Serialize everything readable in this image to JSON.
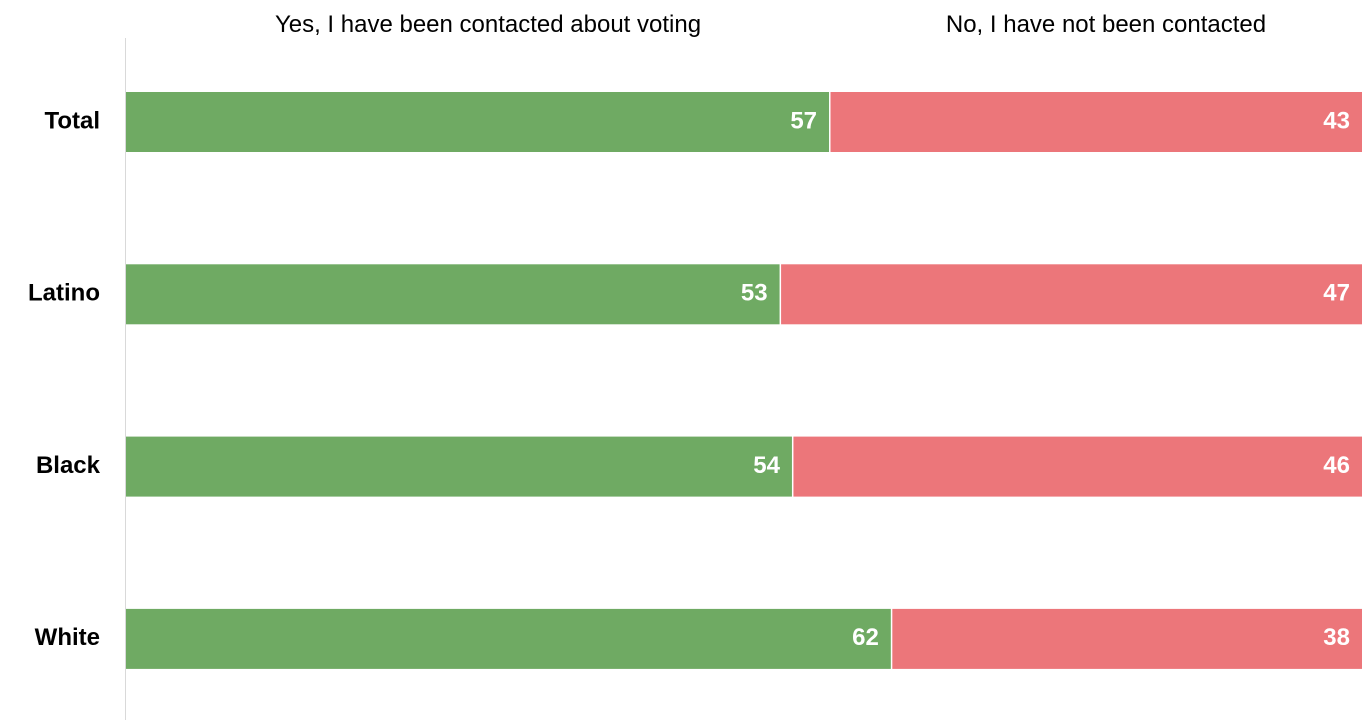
{
  "chart_data": {
    "type": "bar",
    "orientation": "horizontal",
    "stacked": true,
    "categories": [
      "Total",
      "Latino",
      "Black",
      "White"
    ],
    "series": [
      {
        "name": "Yes, I have been contacted about voting",
        "values": [
          57,
          53,
          54,
          62
        ],
        "color": "#6faa63"
      },
      {
        "name": "No, I have not been contacted",
        "values": [
          43,
          47,
          46,
          38
        ],
        "color": "#ec767a"
      }
    ],
    "xlim": [
      0,
      100
    ],
    "legend_position": "top",
    "grid": false
  }
}
